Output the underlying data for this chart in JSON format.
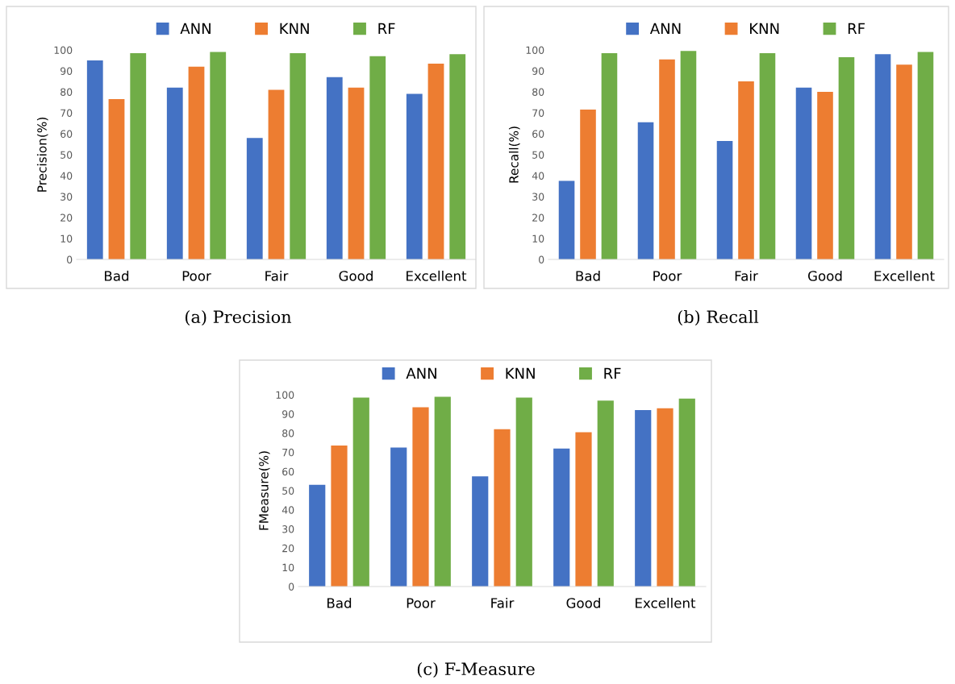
{
  "chart_data": [
    {
      "type": "bar",
      "ylabel": "Precision(%)",
      "categories": [
        "Bad",
        "Poor",
        "Fair",
        "Good",
        "Excellent"
      ],
      "series": [
        {
          "name": "ANN",
          "color": "#4472c4",
          "values": [
            95,
            82,
            58,
            87,
            79
          ]
        },
        {
          "name": "KNN",
          "color": "#ed7d31",
          "values": [
            76.5,
            92,
            81,
            82,
            93.5
          ]
        },
        {
          "name": "RF",
          "color": "#70ad47",
          "values": [
            98.5,
            99,
            98.5,
            97,
            98
          ]
        }
      ],
      "ylim": [
        0,
        100
      ],
      "yticks": [
        0,
        10,
        20,
        30,
        40,
        50,
        60,
        70,
        80,
        90,
        100
      ],
      "legend": "top",
      "grid": false,
      "annotations": [
        "(a) Precision"
      ]
    },
    {
      "type": "bar",
      "ylabel": "Recall(%)",
      "categories": [
        "Bad",
        "Poor",
        "Fair",
        "Good",
        "Excellent"
      ],
      "series": [
        {
          "name": "ANN",
          "color": "#4472c4",
          "values": [
            37.5,
            65.5,
            56.5,
            82,
            98
          ]
        },
        {
          "name": "KNN",
          "color": "#ed7d31",
          "values": [
            71.5,
            95.5,
            85,
            80,
            93
          ]
        },
        {
          "name": "RF",
          "color": "#70ad47",
          "values": [
            98.5,
            99.5,
            98.5,
            96.5,
            99
          ]
        }
      ],
      "ylim": [
        0,
        100
      ],
      "yticks": [
        0,
        10,
        20,
        30,
        40,
        50,
        60,
        70,
        80,
        90,
        100
      ],
      "legend": "top",
      "grid": false,
      "annotations": [
        "(b) Recall"
      ]
    },
    {
      "type": "bar",
      "ylabel": "FMeasure(%)",
      "categories": [
        "Bad",
        "Poor",
        "Fair",
        "Good",
        "Excellent"
      ],
      "series": [
        {
          "name": "ANN",
          "color": "#4472c4",
          "values": [
            53,
            72.5,
            57.5,
            72,
            92
          ]
        },
        {
          "name": "KNN",
          "color": "#ed7d31",
          "values": [
            73.5,
            93.5,
            82,
            80.5,
            93
          ]
        },
        {
          "name": "RF",
          "color": "#70ad47",
          "values": [
            98.5,
            99,
            98.5,
            97,
            98
          ]
        }
      ],
      "ylim": [
        0,
        100
      ],
      "yticks": [
        0,
        10,
        20,
        30,
        40,
        50,
        60,
        70,
        80,
        90,
        100
      ],
      "legend": "top",
      "grid": false,
      "annotations": [
        "(c) F-Measure"
      ]
    }
  ]
}
